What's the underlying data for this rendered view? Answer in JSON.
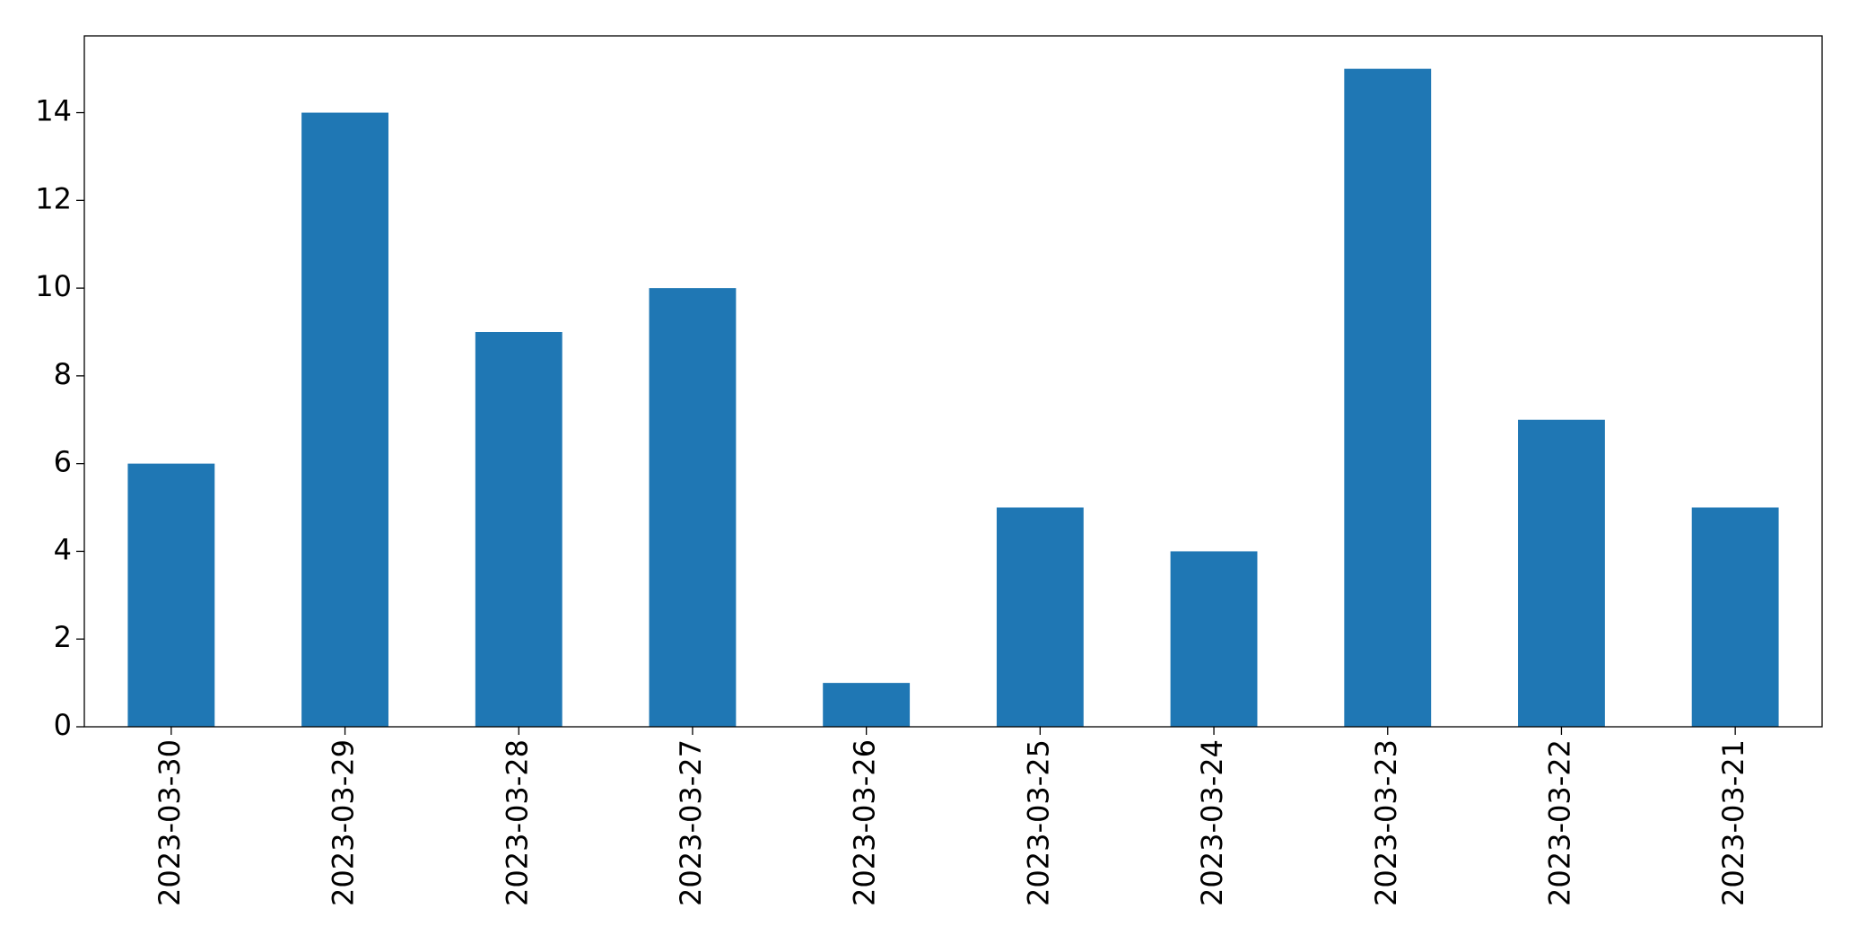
{
  "chart_data": {
    "type": "bar",
    "categories": [
      "2023-03-30",
      "2023-03-29",
      "2023-03-28",
      "2023-03-27",
      "2023-03-26",
      "2023-03-25",
      "2023-03-24",
      "2023-03-23",
      "2023-03-22",
      "2023-03-21"
    ],
    "values": [
      6,
      14,
      9,
      10,
      1,
      5,
      4,
      15,
      7,
      5
    ],
    "color": "#1f77b4",
    "ylim": [
      0,
      15.75
    ],
    "yticks": [
      0,
      2,
      4,
      6,
      8,
      10,
      12,
      14
    ],
    "grid": false
  }
}
